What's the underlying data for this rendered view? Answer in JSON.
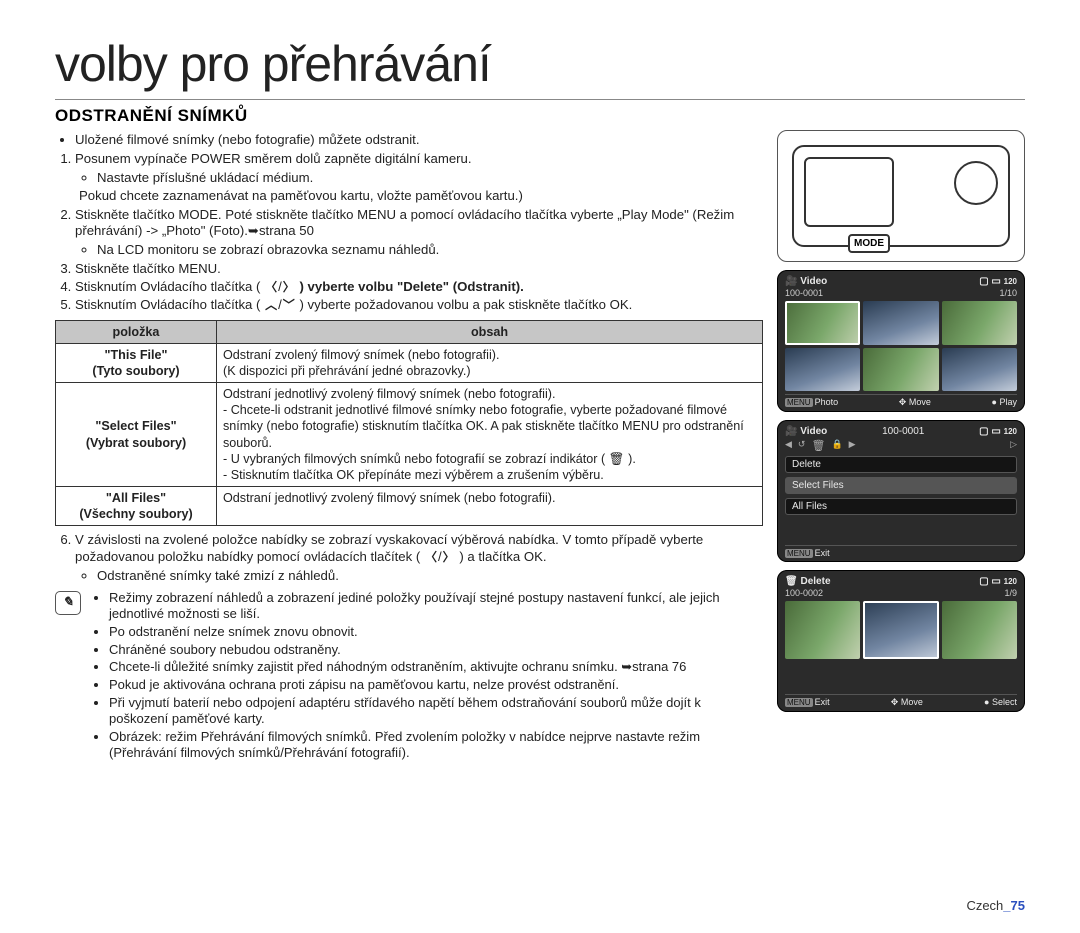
{
  "title": "volby pro přehrávání",
  "section_title": "ODSTRANĚNÍ SNÍMKŮ",
  "intro_bullet": "Uložené filmové snímky (nebo fotografie) můžete odstranit.",
  "steps": {
    "s1": "Posunem vypínače POWER směrem dolů zapněte digitální kameru.",
    "s1a": "Nastavte příslušné ukládací médium.",
    "s1b": "Pokud chcete zaznamenávat na paměťovou kartu, vložte paměťovou kartu.)",
    "s2": "Stiskněte tlačítko MODE. Poté stiskněte tlačítko MENU a pomocí ovládacího tlačítka vyberte „Play Mode\" (Režim přehrávání) -> „Photo\" (Foto).➥strana 50",
    "s2a": "Na LCD monitoru se zobrazí obrazovka seznamu náhledů.",
    "s3": "Stiskněte tlačítko MENU.",
    "s4a": "Stisknutím Ovládacího tlačítka (",
    "s4b": ") vyberte volbu \"Delete\" (Odstranit).",
    "s5a": "Stisknutím Ovládacího tlačítka (",
    "s5b": ") vyberte požadovanou volbu a pak stiskněte tlačítko OK.",
    "s6": "V závislosti na zvolené položce nabídky se zobrazí vyskakovací výběrová nabídka. V tomto případě vyberte požadovanou položku nabídky pomocí ovládacích tlačítek (",
    "s6b": ") a tlačítka OK.",
    "s6c": "Odstraněné snímky také zmizí z náhledů."
  },
  "table": {
    "h1": "položka",
    "h2": "obsah",
    "r1k": "\"This File\"\n(Tyto soubory)",
    "r1v": "Odstraní zvolený filmový snímek (nebo fotografii).\n(K dispozici při přehrávání jedné obrazovky.)",
    "r2k": "\"Select Files\"\n(Vybrat soubory)",
    "r2v1": "Odstraní jednotlivý zvolený filmový snímek (nebo fotografii).",
    "r2v2": "Chcete-li odstranit jednotlivé filmové snímky nebo fotografie, vyberte požadované filmové snímky (nebo fotografie) stisknutím tlačítka OK. A pak stiskněte tlačítko MENU pro odstranění souborů.",
    "r2v3": "U vybraných filmových snímků nebo fotografií se zobrazí indikátor ( 🗑 ).",
    "r2v4": "Stisknutím tlačítka OK přepínáte mezi výběrem a zrušením výběru.",
    "r3k": "\"All Files\"\n(Všechny soubory)",
    "r3v": "Odstraní jednotlivý zvolený filmový snímek (nebo fotografii)."
  },
  "notes": {
    "n1": "Režimy zobrazení náhledů a zobrazení jediné položky používají stejné postupy nastavení funkcí, ale jejich jednotlivé možnosti se liší.",
    "n2": "Po odstranění nelze snímek znovu obnovit.",
    "n3": "Chráněné soubory nebudou odstraněny.",
    "n4": "Chcete-li důležité snímky zajistit před náhodným odstraněním, aktivujte ochranu snímku. ➥strana 76",
    "n5": "Pokud je aktivována ochrana proti zápisu na paměťovou kartu, nelze provést odstranění.",
    "n6": "Při vyjmutí baterií nebo odpojení adaptéru střídavého napětí během odstraňování souborů může dojít k poškození paměťové karty.",
    "n7": "Obrázek: režim Přehrávání filmových snímků. Před zvolením položky v nabídce nejprve nastavte režim (Přehrávání filmových snímků/Přehrávání fotografií)."
  },
  "illus": {
    "mode": "MODE"
  },
  "screens": {
    "video": {
      "title": "Video",
      "folder": "100-0001",
      "counter": "1/10",
      "menu": "MENU",
      "photo": "Photo",
      "move": "Move",
      "play": "Play"
    },
    "menu": {
      "title": "Video",
      "folder": "100-0001",
      "delete": "Delete",
      "select": "Select Files",
      "all": "All Files",
      "menu": "MENU",
      "exit": "Exit"
    },
    "del": {
      "title": "Delete",
      "folder": "100-0002",
      "counter": "1/9",
      "menu": "MENU",
      "exit": "Exit",
      "move": "Move",
      "select": "Select"
    }
  },
  "footer_lang": "Czech",
  "footer_page": "_75"
}
